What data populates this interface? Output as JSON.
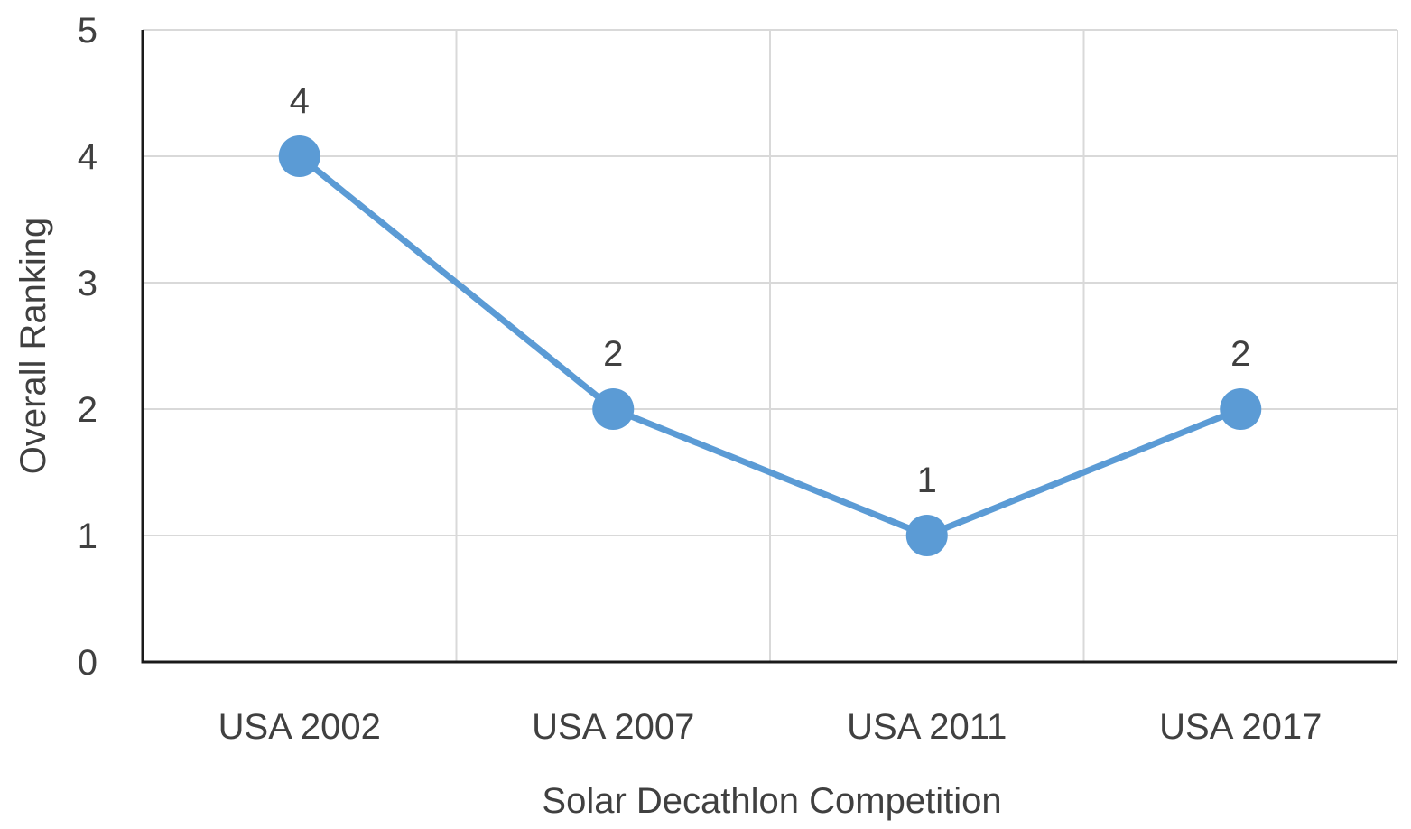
{
  "chart_data": {
    "type": "line",
    "title": "",
    "xlabel": "Solar Decathlon Competition",
    "ylabel": "Overall Ranking",
    "categories": [
      "USA 2002",
      "USA 2007",
      "USA 2011",
      "USA 2017"
    ],
    "series": [
      {
        "name": "Overall Ranking",
        "values": [
          4,
          2,
          1,
          2
        ]
      }
    ],
    "ylim": [
      0,
      5
    ],
    "yticks": [
      0,
      1,
      2,
      3,
      4,
      5
    ],
    "grid": true,
    "legend": "none",
    "data_labels": true,
    "colors": {
      "line": "#5b9bd5",
      "marker": "#5b9bd5"
    }
  }
}
